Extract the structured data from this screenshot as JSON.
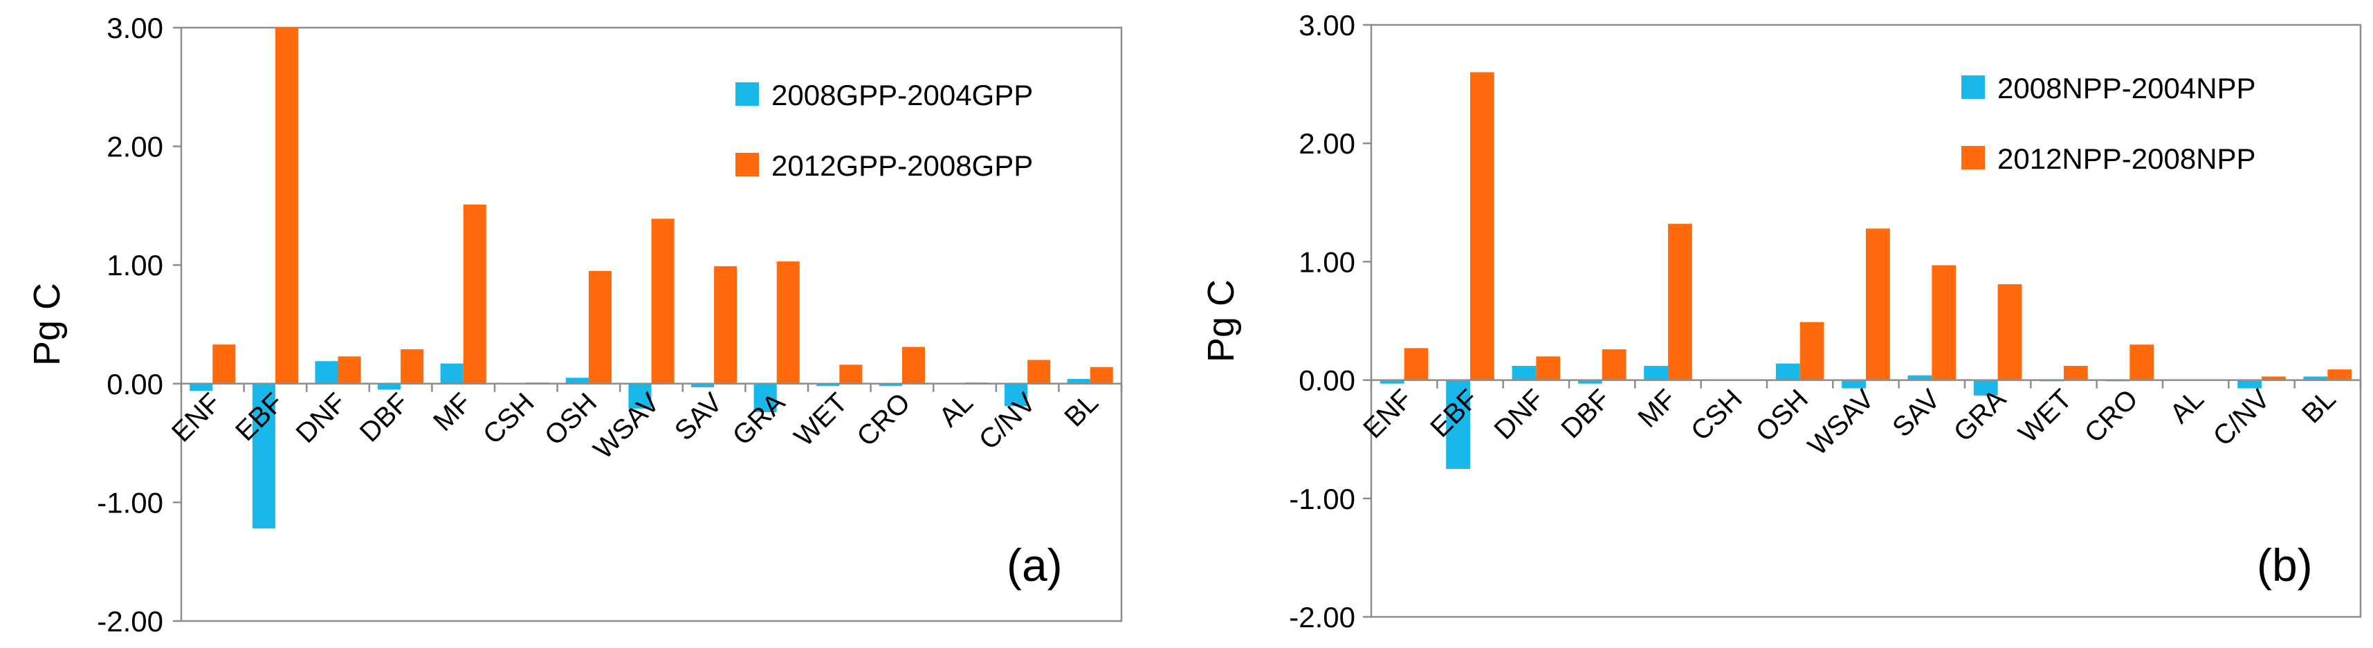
{
  "chart_data": [
    {
      "type": "bar",
      "panel_label": "(a)",
      "ylabel": "Pg C",
      "ylim": [
        -2,
        3
      ],
      "yticks": [
        "-2.00",
        "-1.00",
        "0.00",
        "1.00",
        "2.00",
        "3.00"
      ],
      "categories": [
        "ENF",
        "EBF",
        "DNF",
        "DBF",
        "MF",
        "CSH",
        "OSH",
        "WSAV",
        "SAV",
        "GRA",
        "WET",
        "CRO",
        "AL",
        "C/NV",
        "BL"
      ],
      "series": [
        {
          "name": "2008GPP-2004GPP",
          "color": "#1ab7ea",
          "values": [
            -0.06,
            -1.22,
            0.19,
            -0.05,
            0.17,
            0.0,
            0.05,
            -0.21,
            -0.03,
            -0.24,
            -0.02,
            -0.02,
            0.0,
            -0.19,
            0.04
          ]
        },
        {
          "name": "2012GPP-2008GPP",
          "color": "#ff6a0d",
          "values": [
            0.33,
            3.0,
            0.23,
            0.29,
            1.51,
            0.01,
            0.95,
            1.39,
            0.99,
            1.03,
            0.16,
            0.31,
            0.01,
            0.2,
            0.14
          ]
        }
      ],
      "legend_position": "top-right"
    },
    {
      "type": "bar",
      "panel_label": "(b)",
      "ylabel": "Pg C",
      "ylim": [
        -2,
        3
      ],
      "yticks": [
        "-2.00",
        "-1.00",
        "0.00",
        "1.00",
        "2.00",
        "3.00"
      ],
      "categories": [
        "ENF",
        "EBF",
        "DNF",
        "DBF",
        "MF",
        "CSH",
        "OSH",
        "WSAV",
        "SAV",
        "GRA",
        "WET",
        "CRO",
        "AL",
        "C/NV",
        "BL"
      ],
      "series": [
        {
          "name": "2008NPP-2004NPP",
          "color": "#1ab7ea",
          "values": [
            -0.03,
            -0.75,
            0.12,
            -0.03,
            0.12,
            0.0,
            0.14,
            -0.07,
            0.04,
            -0.13,
            -0.01,
            -0.01,
            0.0,
            -0.07,
            0.03
          ]
        },
        {
          "name": "2012NPP-2008NPP",
          "color": "#ff6a0d",
          "values": [
            0.27,
            2.6,
            0.2,
            0.26,
            1.32,
            0.0,
            0.49,
            1.28,
            0.97,
            0.81,
            0.12,
            0.3,
            0.0,
            0.03,
            0.09
          ]
        }
      ],
      "legend_position": "top-right"
    }
  ]
}
